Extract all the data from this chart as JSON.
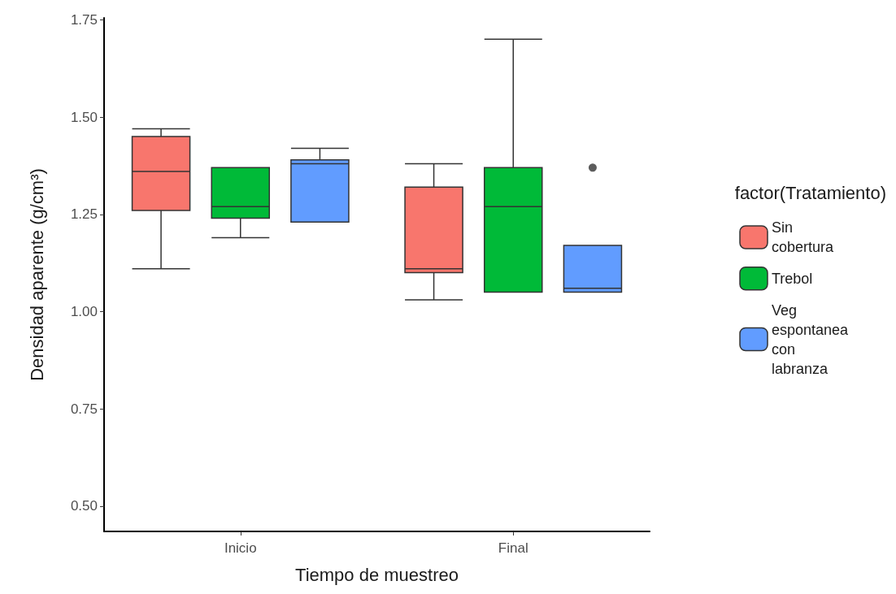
{
  "chart_data": {
    "type": "box",
    "xlabel": "Tiempo de muestreo",
    "ylabel": "Densidad aparente (g/cm³)",
    "legend_title": "factor(Tratamiento)",
    "categories": [
      "Inicio",
      "Final"
    ],
    "series": [
      {
        "name": "Sin cobertura",
        "color": "#f8766d",
        "boxes": [
          {
            "low": 1.11,
            "q1": 1.26,
            "median": 1.36,
            "q3": 1.45,
            "high": 1.47
          },
          {
            "low": 1.03,
            "q1": 1.1,
            "median": 1.11,
            "q3": 1.32,
            "high": 1.38
          }
        ]
      },
      {
        "name": "Trebol",
        "color": "#00ba38",
        "boxes": [
          {
            "low": 1.19,
            "q1": 1.24,
            "median": 1.27,
            "q3": 1.37,
            "high": 1.37
          },
          {
            "low": 1.05,
            "q1": 1.05,
            "median": 1.27,
            "q3": 1.37,
            "high": 1.7
          }
        ]
      },
      {
        "name": "Veg espontanea con labranza",
        "color": "#619cff",
        "boxes": [
          {
            "low": 1.23,
            "q1": 1.23,
            "median": 1.38,
            "q3": 1.39,
            "high": 1.42
          },
          {
            "low": 1.05,
            "q1": 1.05,
            "median": 1.06,
            "q3": 1.17,
            "high": 1.17,
            "outliers": [
              1.37
            ]
          }
        ]
      }
    ],
    "ylim": [
      0.435,
      1.755
    ],
    "yticks": [
      {
        "value": 0.5,
        "label": "0.50"
      },
      {
        "value": 0.75,
        "label": "0.75"
      },
      {
        "value": 1.0,
        "label": "1.00"
      },
      {
        "value": 1.25,
        "label": "1.25"
      },
      {
        "value": 1.5,
        "label": "1.50"
      },
      {
        "value": 1.75,
        "label": "1.75"
      }
    ],
    "grid": false,
    "legend": "right"
  }
}
